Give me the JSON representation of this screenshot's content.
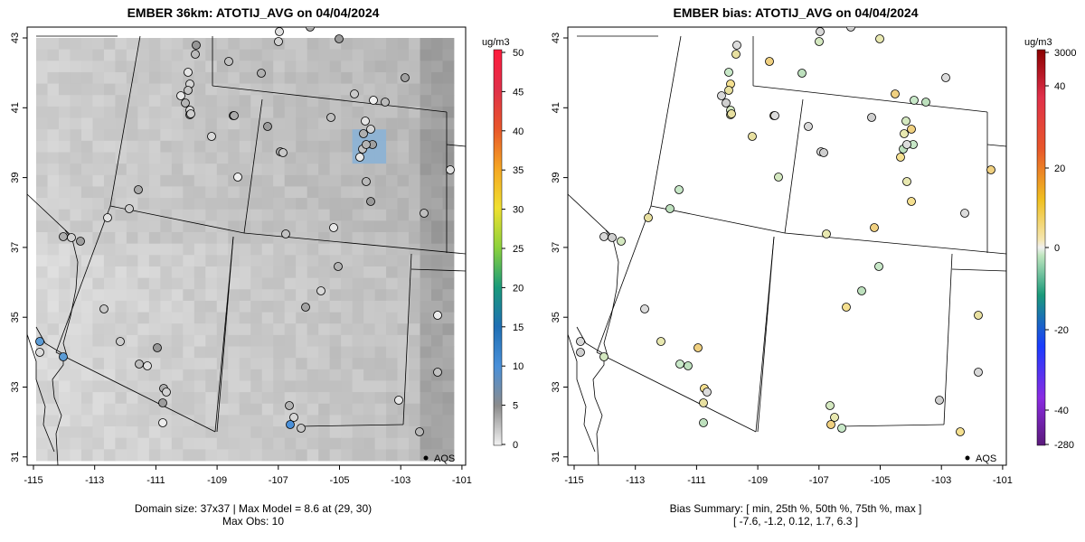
{
  "panels": [
    {
      "title": "EMBER 36km: ATOTIJ_AVG on 04/04/2024",
      "colorbar_unit": "ug/m3",
      "colorbar_ticks": [
        "0",
        "5",
        "10",
        "15",
        "20",
        "25",
        "30",
        "35",
        "40",
        "45",
        "50"
      ],
      "legend": "AQS",
      "footer_line1": "Domain size: 37x37 | Max Model = 8.6 at (29, 30)",
      "footer_line2": "Max Obs: 10"
    },
    {
      "title": "EMBER bias: ATOTIJ_AVG on 04/04/2024",
      "colorbar_unit": "ug/m3",
      "colorbar_ticks": [
        "-280",
        "-40",
        "-20",
        "0",
        "20",
        "40",
        "3000"
      ],
      "legend": "AQS",
      "footer_line1": "Bias Summary: [ min, 25th %, 50th %, 75th %, max ]",
      "footer_line2": "[ -7.6,   -1.2,   0.12,   1.7,   6.3 ]"
    }
  ],
  "axes": {
    "x_ticks": [
      "-115",
      "-113",
      "-111",
      "-109",
      "-107",
      "-105",
      "-103",
      "-101"
    ],
    "y_ticks": [
      "43",
      "41",
      "39",
      "37",
      "35",
      "33",
      "31"
    ]
  },
  "colors": {
    "obs_outline": "#000000",
    "model_low": "#d9d9d9",
    "model_high": "#6fa8dc"
  }
}
